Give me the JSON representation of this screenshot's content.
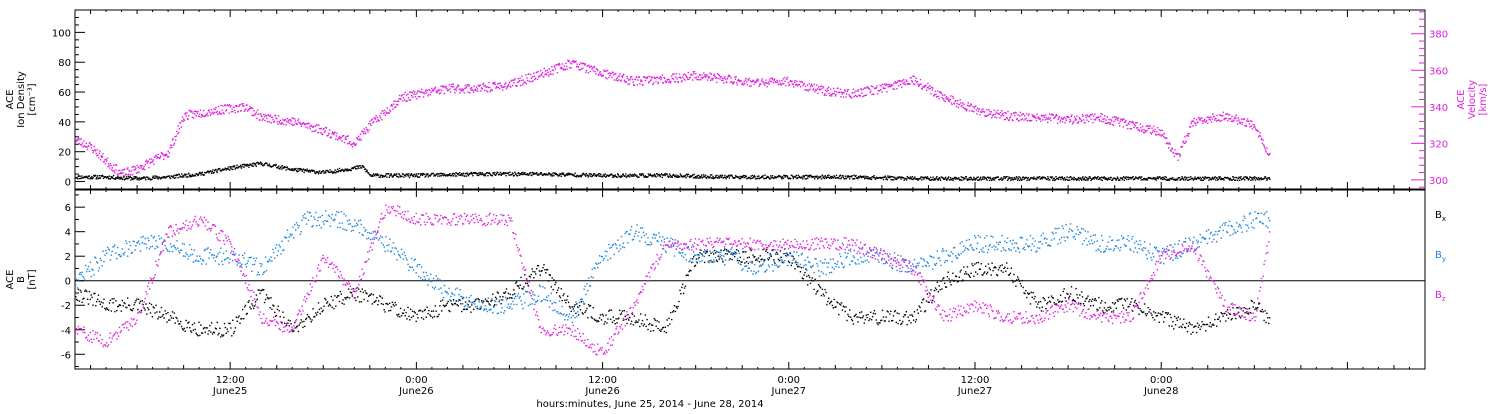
{
  "x_axis": {
    "title": "hours:minutes, June 25, 2014 - June 28, 2014",
    "range": [
      "2014-06-25 02:00",
      "2014-06-28 17:00"
    ],
    "ticks": [
      {
        "time": "2014-06-25 12:00",
        "line1": "12:00",
        "line2": "June25"
      },
      {
        "time": "2014-06-26 00:00",
        "line1": "0:00",
        "line2": "June26"
      },
      {
        "time": "2014-06-26 12:00",
        "line1": "12:00",
        "line2": "June26"
      },
      {
        "time": "2014-06-27 00:00",
        "line1": "0:00",
        "line2": "June27"
      },
      {
        "time": "2014-06-27 12:00",
        "line1": "12:00",
        "line2": "June27"
      },
      {
        "time": "2014-06-28 00:00",
        "line1": "0:00",
        "line2": "June28"
      }
    ]
  },
  "colors": {
    "axis": "#000000",
    "density": "#000000",
    "velocity": "#e020e0",
    "bx": "#000000",
    "by": "#1a86e0",
    "bz": "#e020e0"
  },
  "chart_data": [
    {
      "type": "scatter",
      "panel": "top",
      "left_axis": {
        "label_lines": [
          "ACE",
          "Ion Density"
        ],
        "unit": "[cm⁻³]",
        "ylim": [
          -5,
          115
        ],
        "ticks": [
          0,
          20,
          40,
          60,
          80,
          100
        ]
      },
      "right_axis": {
        "label_lines": [
          "ACE",
          "Velocity"
        ],
        "unit": "[km/s]",
        "ylim": [
          295,
          393
        ],
        "ticks": [
          300,
          320,
          340,
          360,
          380
        ]
      },
      "series": [
        {
          "key": "density",
          "axis": "left",
          "x": [
            "2014-06-25 02:00",
            "2014-06-25 04:00",
            "2014-06-25 06:00",
            "2014-06-25 08:00",
            "2014-06-25 10:00",
            "2014-06-25 12:00",
            "2014-06-25 14:00",
            "2014-06-25 16:00",
            "2014-06-25 18:00",
            "2014-06-25 20:00",
            "2014-06-25 20:30",
            "2014-06-25 21:00",
            "2014-06-26 00:00",
            "2014-06-26 04:00",
            "2014-06-26 08:00",
            "2014-06-26 12:00",
            "2014-06-26 16:00",
            "2014-06-26 20:00",
            "2014-06-27 00:00",
            "2014-06-27 04:00",
            "2014-06-27 08:00",
            "2014-06-27 12:00",
            "2014-06-27 16:00",
            "2014-06-27 20:00",
            "2014-06-28 00:00",
            "2014-06-28 04:00",
            "2014-06-28 07:00"
          ],
          "y": [
            3,
            3,
            2,
            3,
            5,
            9,
            12,
            8,
            6,
            9,
            10,
            4,
            4,
            5,
            5,
            4,
            4,
            3,
            3,
            3,
            2,
            2,
            2,
            2,
            2,
            2,
            2
          ]
        },
        {
          "key": "velocity",
          "axis": "right",
          "x": [
            "2014-06-25 02:00",
            "2014-06-25 03:00",
            "2014-06-25 04:00",
            "2014-06-25 05:00",
            "2014-06-25 06:00",
            "2014-06-25 08:00",
            "2014-06-25 09:00",
            "2014-06-25 11:00",
            "2014-06-25 13:00",
            "2014-06-25 14:00",
            "2014-06-25 16:00",
            "2014-06-25 18:00",
            "2014-06-25 20:00",
            "2014-06-25 21:00",
            "2014-06-25 23:00",
            "2014-06-26 02:00",
            "2014-06-26 04:00",
            "2014-06-26 06:00",
            "2014-06-26 08:00",
            "2014-06-26 10:00",
            "2014-06-26 12:00",
            "2014-06-26 14:00",
            "2014-06-26 16:00",
            "2014-06-26 18:00",
            "2014-06-26 20:00",
            "2014-06-26 22:00",
            "2014-06-27 00:00",
            "2014-06-27 02:00",
            "2014-06-27 04:00",
            "2014-06-27 06:00",
            "2014-06-27 08:00",
            "2014-06-27 10:00",
            "2014-06-27 12:00",
            "2014-06-27 14:00",
            "2014-06-27 16:00",
            "2014-06-27 18:00",
            "2014-06-27 20:00",
            "2014-06-27 22:00",
            "2014-06-28 00:00",
            "2014-06-28 01:00",
            "2014-06-28 02:00",
            "2014-06-28 04:00",
            "2014-06-28 06:00",
            "2014-06-28 07:00"
          ],
          "y": [
            322,
            318,
            310,
            303,
            306,
            315,
            335,
            338,
            340,
            334,
            332,
            327,
            320,
            330,
            345,
            350,
            350,
            352,
            358,
            364,
            358,
            354,
            355,
            357,
            355,
            353,
            354,
            349,
            347,
            350,
            355,
            345,
            338,
            335,
            334,
            333,
            334,
            330,
            326,
            312,
            331,
            335,
            330,
            312
          ]
        }
      ]
    },
    {
      "type": "scatter",
      "panel": "bottom",
      "left_axis": {
        "label_lines": [
          "ACE",
          "B"
        ],
        "unit": "[nT]",
        "ylim": [
          -7.2,
          7.4
        ],
        "ticks": [
          -6,
          -4,
          -2,
          0,
          2,
          4,
          6
        ]
      },
      "zero_line": true,
      "series": [
        {
          "key": "bx",
          "name": "Bx",
          "name_base": "B",
          "name_sub": "x",
          "x": [
            "2014-06-25 02:00",
            "2014-06-25 04:00",
            "2014-06-25 06:00",
            "2014-06-25 08:00",
            "2014-06-25 10:00",
            "2014-06-25 12:00",
            "2014-06-25 14:00",
            "2014-06-25 16:00",
            "2014-06-25 18:00",
            "2014-06-25 20:00",
            "2014-06-25 22:00",
            "2014-06-26 00:00",
            "2014-06-26 02:00",
            "2014-06-26 04:00",
            "2014-06-26 06:00",
            "2014-06-26 08:00",
            "2014-06-26 10:00",
            "2014-06-26 12:00",
            "2014-06-26 14:00",
            "2014-06-26 16:00",
            "2014-06-26 18:00",
            "2014-06-26 20:00",
            "2014-06-26 22:00",
            "2014-06-27 00:00",
            "2014-06-27 02:00",
            "2014-06-27 04:00",
            "2014-06-27 06:00",
            "2014-06-27 08:00",
            "2014-06-27 10:00",
            "2014-06-27 12:00",
            "2014-06-27 14:00",
            "2014-06-27 16:00",
            "2014-06-27 18:00",
            "2014-06-27 20:00",
            "2014-06-27 22:00",
            "2014-06-28 00:00",
            "2014-06-28 02:00",
            "2014-06-28 04:00",
            "2014-06-28 06:00",
            "2014-06-28 07:00"
          ],
          "y": [
            -1,
            -2,
            -2,
            -3,
            -4,
            -4,
            -1,
            -4,
            -2,
            -1,
            -2,
            -3,
            -2,
            -2,
            -1,
            1,
            -2,
            -3,
            -3,
            -4,
            2,
            2,
            2,
            2,
            -1,
            -3,
            -3,
            -3,
            0,
            1,
            1,
            -2,
            -1,
            -2,
            -2,
            -3,
            -4,
            -3,
            -2,
            -3.5
          ]
        },
        {
          "key": "by",
          "name": "By",
          "name_base": "B",
          "name_sub": "y",
          "x": [
            "2014-06-25 02:00",
            "2014-06-25 04:00",
            "2014-06-25 06:00",
            "2014-06-25 08:00",
            "2014-06-25 10:00",
            "2014-06-25 12:00",
            "2014-06-25 14:00",
            "2014-06-25 16:00",
            "2014-06-25 17:00",
            "2014-06-25 19:00",
            "2014-06-25 21:00",
            "2014-06-25 23:00",
            "2014-06-26 02:00",
            "2014-06-26 04:00",
            "2014-06-26 06:00",
            "2014-06-26 08:00",
            "2014-06-26 10:00",
            "2014-06-26 12:00",
            "2014-06-26 14:00",
            "2014-06-26 16:00",
            "2014-06-26 18:00",
            "2014-06-26 20:00",
            "2014-06-26 22:00",
            "2014-06-27 00:00",
            "2014-06-27 02:00",
            "2014-06-27 04:00",
            "2014-06-27 06:00",
            "2014-06-27 08:00",
            "2014-06-27 10:00",
            "2014-06-27 12:00",
            "2014-06-27 14:00",
            "2014-06-27 16:00",
            "2014-06-27 18:00",
            "2014-06-27 20:00",
            "2014-06-27 22:00",
            "2014-06-28 00:00",
            "2014-06-28 02:00",
            "2014-06-28 04:00",
            "2014-06-28 06:00",
            "2014-06-28 07:00"
          ],
          "y": [
            0,
            2,
            3,
            3,
            2,
            2,
            1,
            4,
            5,
            5,
            4,
            2,
            -1,
            -2,
            -2,
            -1,
            -3,
            2,
            4,
            3,
            2,
            2,
            1,
            2,
            1,
            2,
            2,
            1,
            2,
            3,
            3,
            3,
            4,
            3,
            3,
            2,
            3,
            4,
            5,
            5
          ]
        },
        {
          "key": "bz",
          "name": "Bz",
          "name_base": "B",
          "name_sub": "z",
          "x": [
            "2014-06-25 02:00",
            "2014-06-25 04:00",
            "2014-06-25 06:00",
            "2014-06-25 08:00",
            "2014-06-25 10:00",
            "2014-06-25 12:00",
            "2014-06-25 14:00",
            "2014-06-25 16:00",
            "2014-06-25 18:00",
            "2014-06-25 20:00",
            "2014-06-25 22:00",
            "2014-06-26 00:00",
            "2014-06-26 02:00",
            "2014-06-26 04:00",
            "2014-06-26 06:00",
            "2014-06-26 08:00",
            "2014-06-26 10:00",
            "2014-06-26 12:00",
            "2014-06-26 14:00",
            "2014-06-26 16:00",
            "2014-06-26 18:00",
            "2014-06-26 20:00",
            "2014-06-26 22:00",
            "2014-06-27 00:00",
            "2014-06-27 02:00",
            "2014-06-27 04:00",
            "2014-06-27 06:00",
            "2014-06-27 08:00",
            "2014-06-27 10:00",
            "2014-06-27 12:00",
            "2014-06-27 14:00",
            "2014-06-27 16:00",
            "2014-06-27 18:00",
            "2014-06-27 20:00",
            "2014-06-27 22:00",
            "2014-06-28 00:00",
            "2014-06-28 02:00",
            "2014-06-28 04:00",
            "2014-06-28 06:00",
            "2014-06-28 07:00"
          ],
          "y": [
            -4,
            -5,
            -3,
            4,
            5,
            3,
            -3,
            -4,
            2,
            -1,
            6,
            5,
            5,
            5,
            5,
            -4,
            -4,
            -6,
            -2,
            3,
            3,
            3,
            3,
            3,
            3,
            3,
            2,
            1,
            -3,
            -2,
            -3,
            -3,
            -2,
            -3,
            -3,
            2,
            3,
            -2,
            -3,
            4
          ]
        }
      ]
    }
  ]
}
